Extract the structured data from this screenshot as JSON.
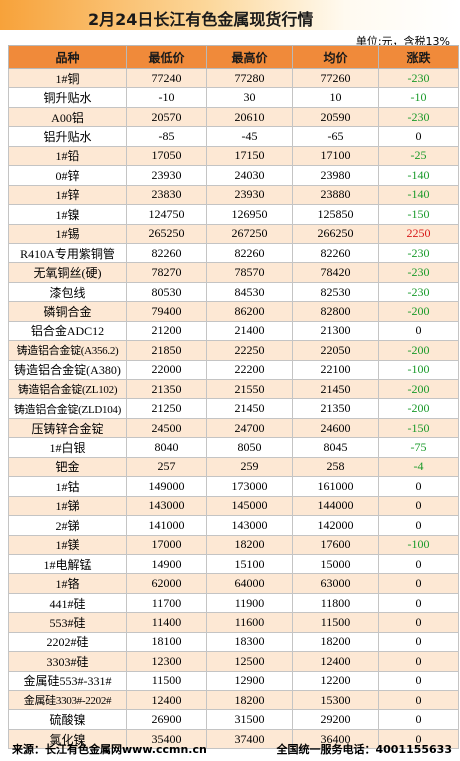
{
  "header": {
    "title": "2月24日长江有色金属现货行情",
    "unit_note": "单位:元，含税13%"
  },
  "table": {
    "columns": [
      "品种",
      "最低价",
      "最高价",
      "均价",
      "涨跌"
    ],
    "rows": [
      {
        "name": "1#铜",
        "low": "77240",
        "high": "77280",
        "avg": "77260",
        "change": "-230",
        "dir": "down"
      },
      {
        "name": "铜升贴水",
        "low": "-10",
        "high": "30",
        "avg": "10",
        "change": "-10",
        "dir": "down"
      },
      {
        "name": "A00铝",
        "low": "20570",
        "high": "20610",
        "avg": "20590",
        "change": "-230",
        "dir": "down"
      },
      {
        "name": "铝升贴水",
        "low": "-85",
        "high": "-45",
        "avg": "-65",
        "change": "0",
        "dir": "flat"
      },
      {
        "name": "1#铅",
        "low": "17050",
        "high": "17150",
        "avg": "17100",
        "change": "-25",
        "dir": "down"
      },
      {
        "name": "0#锌",
        "low": "23930",
        "high": "24030",
        "avg": "23980",
        "change": "-140",
        "dir": "down"
      },
      {
        "name": "1#锌",
        "low": "23830",
        "high": "23930",
        "avg": "23880",
        "change": "-140",
        "dir": "down"
      },
      {
        "name": "1#镍",
        "low": "124750",
        "high": "126950",
        "avg": "125850",
        "change": "-150",
        "dir": "down"
      },
      {
        "name": "1#锡",
        "low": "265250",
        "high": "267250",
        "avg": "266250",
        "change": "2250",
        "dir": "up"
      },
      {
        "name": "R410A专用紫铜管",
        "low": "82260",
        "high": "82260",
        "avg": "82260",
        "change": "-230",
        "dir": "down"
      },
      {
        "name": "无氧铜丝(硬)",
        "low": "78270",
        "high": "78570",
        "avg": "78420",
        "change": "-230",
        "dir": "down"
      },
      {
        "name": "漆包线",
        "low": "80530",
        "high": "84530",
        "avg": "82530",
        "change": "-230",
        "dir": "down"
      },
      {
        "name": "磷铜合金",
        "low": "79400",
        "high": "86200",
        "avg": "82800",
        "change": "-200",
        "dir": "down"
      },
      {
        "name": "铝合金ADC12",
        "low": "21200",
        "high": "21400",
        "avg": "21300",
        "change": "0",
        "dir": "flat"
      },
      {
        "name": "铸造铝合金锭(A356.2)",
        "low": "21850",
        "high": "22250",
        "avg": "22050",
        "change": "-200",
        "dir": "down"
      },
      {
        "name": "铸造铝合金锭(A380)",
        "low": "22000",
        "high": "22200",
        "avg": "22100",
        "change": "-100",
        "dir": "down"
      },
      {
        "name": "铸造铝合金锭(ZL102)",
        "low": "21350",
        "high": "21550",
        "avg": "21450",
        "change": "-200",
        "dir": "down"
      },
      {
        "name": "铸造铝合金锭(ZLD104)",
        "low": "21250",
        "high": "21450",
        "avg": "21350",
        "change": "-200",
        "dir": "down"
      },
      {
        "name": "压铸锌合金锭",
        "low": "24500",
        "high": "24700",
        "avg": "24600",
        "change": "-150",
        "dir": "down"
      },
      {
        "name": "1#白银",
        "low": "8040",
        "high": "8050",
        "avg": "8045",
        "change": "-75",
        "dir": "down"
      },
      {
        "name": "钯金",
        "low": "257",
        "high": "259",
        "avg": "258",
        "change": "-4",
        "dir": "down"
      },
      {
        "name": "1#钴",
        "low": "149000",
        "high": "173000",
        "avg": "161000",
        "change": "0",
        "dir": "flat"
      },
      {
        "name": "1#锑",
        "low": "143000",
        "high": "145000",
        "avg": "144000",
        "change": "0",
        "dir": "flat"
      },
      {
        "name": "2#锑",
        "low": "141000",
        "high": "143000",
        "avg": "142000",
        "change": "0",
        "dir": "flat"
      },
      {
        "name": "1#镁",
        "low": "17000",
        "high": "18200",
        "avg": "17600",
        "change": "-100",
        "dir": "down"
      },
      {
        "name": "1#电解锰",
        "low": "14900",
        "high": "15100",
        "avg": "15000",
        "change": "0",
        "dir": "flat"
      },
      {
        "name": "1#铬",
        "low": "62000",
        "high": "64000",
        "avg": "63000",
        "change": "0",
        "dir": "flat"
      },
      {
        "name": "441#硅",
        "low": "11700",
        "high": "11900",
        "avg": "11800",
        "change": "0",
        "dir": "flat"
      },
      {
        "name": "553#硅",
        "low": "11400",
        "high": "11600",
        "avg": "11500",
        "change": "0",
        "dir": "flat"
      },
      {
        "name": "2202#硅",
        "low": "18100",
        "high": "18300",
        "avg": "18200",
        "change": "0",
        "dir": "flat"
      },
      {
        "name": "3303#硅",
        "low": "12300",
        "high": "12500",
        "avg": "12400",
        "change": "0",
        "dir": "flat"
      },
      {
        "name": "金属硅553#-331#",
        "low": "11500",
        "high": "12900",
        "avg": "12200",
        "change": "0",
        "dir": "flat"
      },
      {
        "name": "金属硅3303#-2202#",
        "low": "12400",
        "high": "18200",
        "avg": "15300",
        "change": "0",
        "dir": "flat"
      },
      {
        "name": "硫酸镍",
        "low": "26900",
        "high": "31500",
        "avg": "29200",
        "change": "0",
        "dir": "flat"
      },
      {
        "name": "氯化镍",
        "low": "35400",
        "high": "37400",
        "avg": "36400",
        "change": "0",
        "dir": "flat"
      }
    ]
  },
  "watermark": {
    "text": "长江有色金属网 www.ccmn.cn"
  },
  "footer": {
    "source": "来源：长江有色金属网www.ccmn.cn",
    "hotline": "全国统一服务电话：4001155633"
  },
  "colors": {
    "header_orange": "#f08a3a",
    "row_stripe": "#fde8d4",
    "down_green": "#1a9a2a",
    "up_red": "#d81818"
  }
}
